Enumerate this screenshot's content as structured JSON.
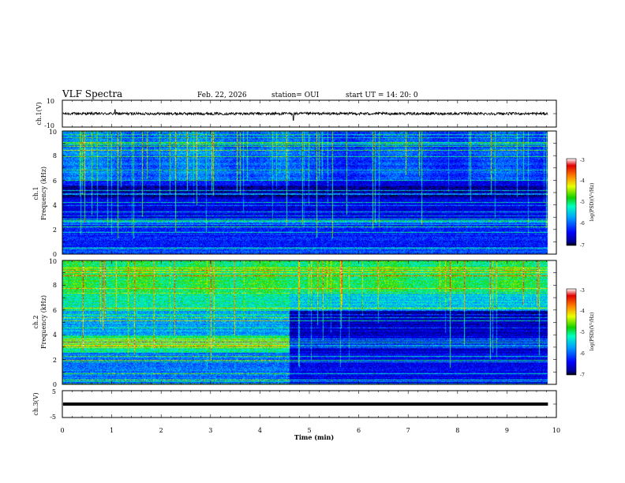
{
  "header": {
    "title": "VLF Spectra",
    "date": "Feb. 22, 2026",
    "station": "station= OUI",
    "start": "start  UT  =   14: 20: 0"
  },
  "colors": {
    "frame": "#000000",
    "background": "#ffffff",
    "spectro_low": "#00008a",
    "spectro_high": "#d80000",
    "trace": "#000000"
  },
  "chart_data": [
    {
      "name": "ch1-waveform",
      "type": "line",
      "ylabel": "ch.1(V)",
      "yticks": [
        "10",
        "-10"
      ],
      "ylim": [
        -10,
        10
      ],
      "xlim": [
        0,
        10
      ],
      "baseline": 0,
      "noise_amplitude": 1.0,
      "spikes": [
        {
          "x": 1.07,
          "y": 3
        },
        {
          "x": 4.68,
          "y": -5
        }
      ],
      "data_end_min": 9.83
    },
    {
      "name": "ch1-spectrogram",
      "type": "heatmap",
      "ylabel_line1": "ch.1",
      "ylabel_line2": "Frequency (kHz)",
      "yticks": [
        "0",
        "2",
        "4",
        "6",
        "8",
        "10"
      ],
      "ylim": [
        0,
        10
      ],
      "xlim": [
        0,
        10
      ],
      "data_end_min": 9.83,
      "colorbar": {
        "label": "log(PSD)(V²/Hz)",
        "ticks": [
          "-3",
          "-4",
          "-5",
          "-6",
          "-7"
        ],
        "range": [
          -7,
          -3
        ]
      }
    },
    {
      "name": "ch2-spectrogram",
      "type": "heatmap",
      "ylabel_line1": "ch.2",
      "ylabel_line2": "Frequency (kHz)",
      "yticks": [
        "0",
        "2",
        "4",
        "6",
        "8",
        "10"
      ],
      "ylim": [
        0,
        10
      ],
      "xlim": [
        0,
        10
      ],
      "data_end_min": 9.83,
      "regime_change_min": 4.6,
      "colorbar": {
        "label": "log(PSD)(V²/Hz)",
        "ticks": [
          "-3",
          "-4",
          "-5",
          "-6",
          "-7"
        ],
        "range": [
          -7,
          -3
        ]
      }
    },
    {
      "name": "ch3-waveform",
      "type": "line",
      "ylabel": "ch.3(V)",
      "yticks": [
        "5",
        "-5"
      ],
      "ylim": [
        -5,
        5
      ],
      "xlim": [
        0,
        10
      ],
      "baseline": 0,
      "data_end_min": 9.83
    }
  ],
  "xaxis": {
    "label": "Time  (min)",
    "ticks": [
      "0",
      "1",
      "2",
      "3",
      "4",
      "5",
      "6",
      "7",
      "8",
      "9",
      "10"
    ],
    "range": [
      0,
      10
    ]
  }
}
